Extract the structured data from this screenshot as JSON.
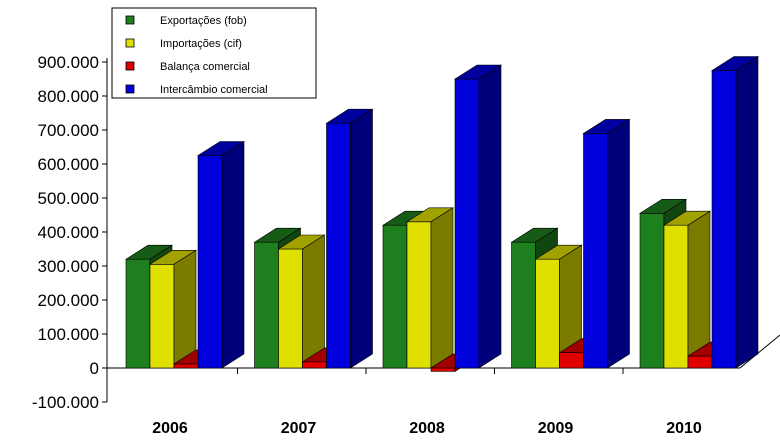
{
  "chart_data": {
    "type": "bar",
    "title": "",
    "xlabel": "",
    "ylabel": "",
    "categories": [
      "2006",
      "2007",
      "2008",
      "2009",
      "2010"
    ],
    "ylim": [
      -100000,
      900000
    ],
    "yticks": [
      -100000,
      0,
      100000,
      200000,
      300000,
      400000,
      500000,
      600000,
      700000,
      800000,
      900000
    ],
    "ytick_labels": [
      "-100.000",
      "0",
      "100.000",
      "200.000",
      "300.000",
      "400.000",
      "500.000",
      "600.000",
      "700.000",
      "800.000",
      "900.000"
    ],
    "legend_position": "top-left",
    "grid": false,
    "series": [
      {
        "name": "Exportações (fob)",
        "color": "#1e7f1e",
        "values": [
          320000,
          370000,
          420000,
          370000,
          455000
        ]
      },
      {
        "name": "Importações (cif)",
        "color": "#e0e000",
        "values": [
          305000,
          350000,
          430000,
          320000,
          420000
        ]
      },
      {
        "name": "Balança comercial",
        "color": "#e00000",
        "values": [
          12000,
          18000,
          -10000,
          45000,
          35000
        ]
      },
      {
        "name": "Intercâmbio comercial",
        "color": "#0000dd",
        "values": [
          625000,
          720000,
          850000,
          690000,
          875000
        ]
      }
    ]
  }
}
